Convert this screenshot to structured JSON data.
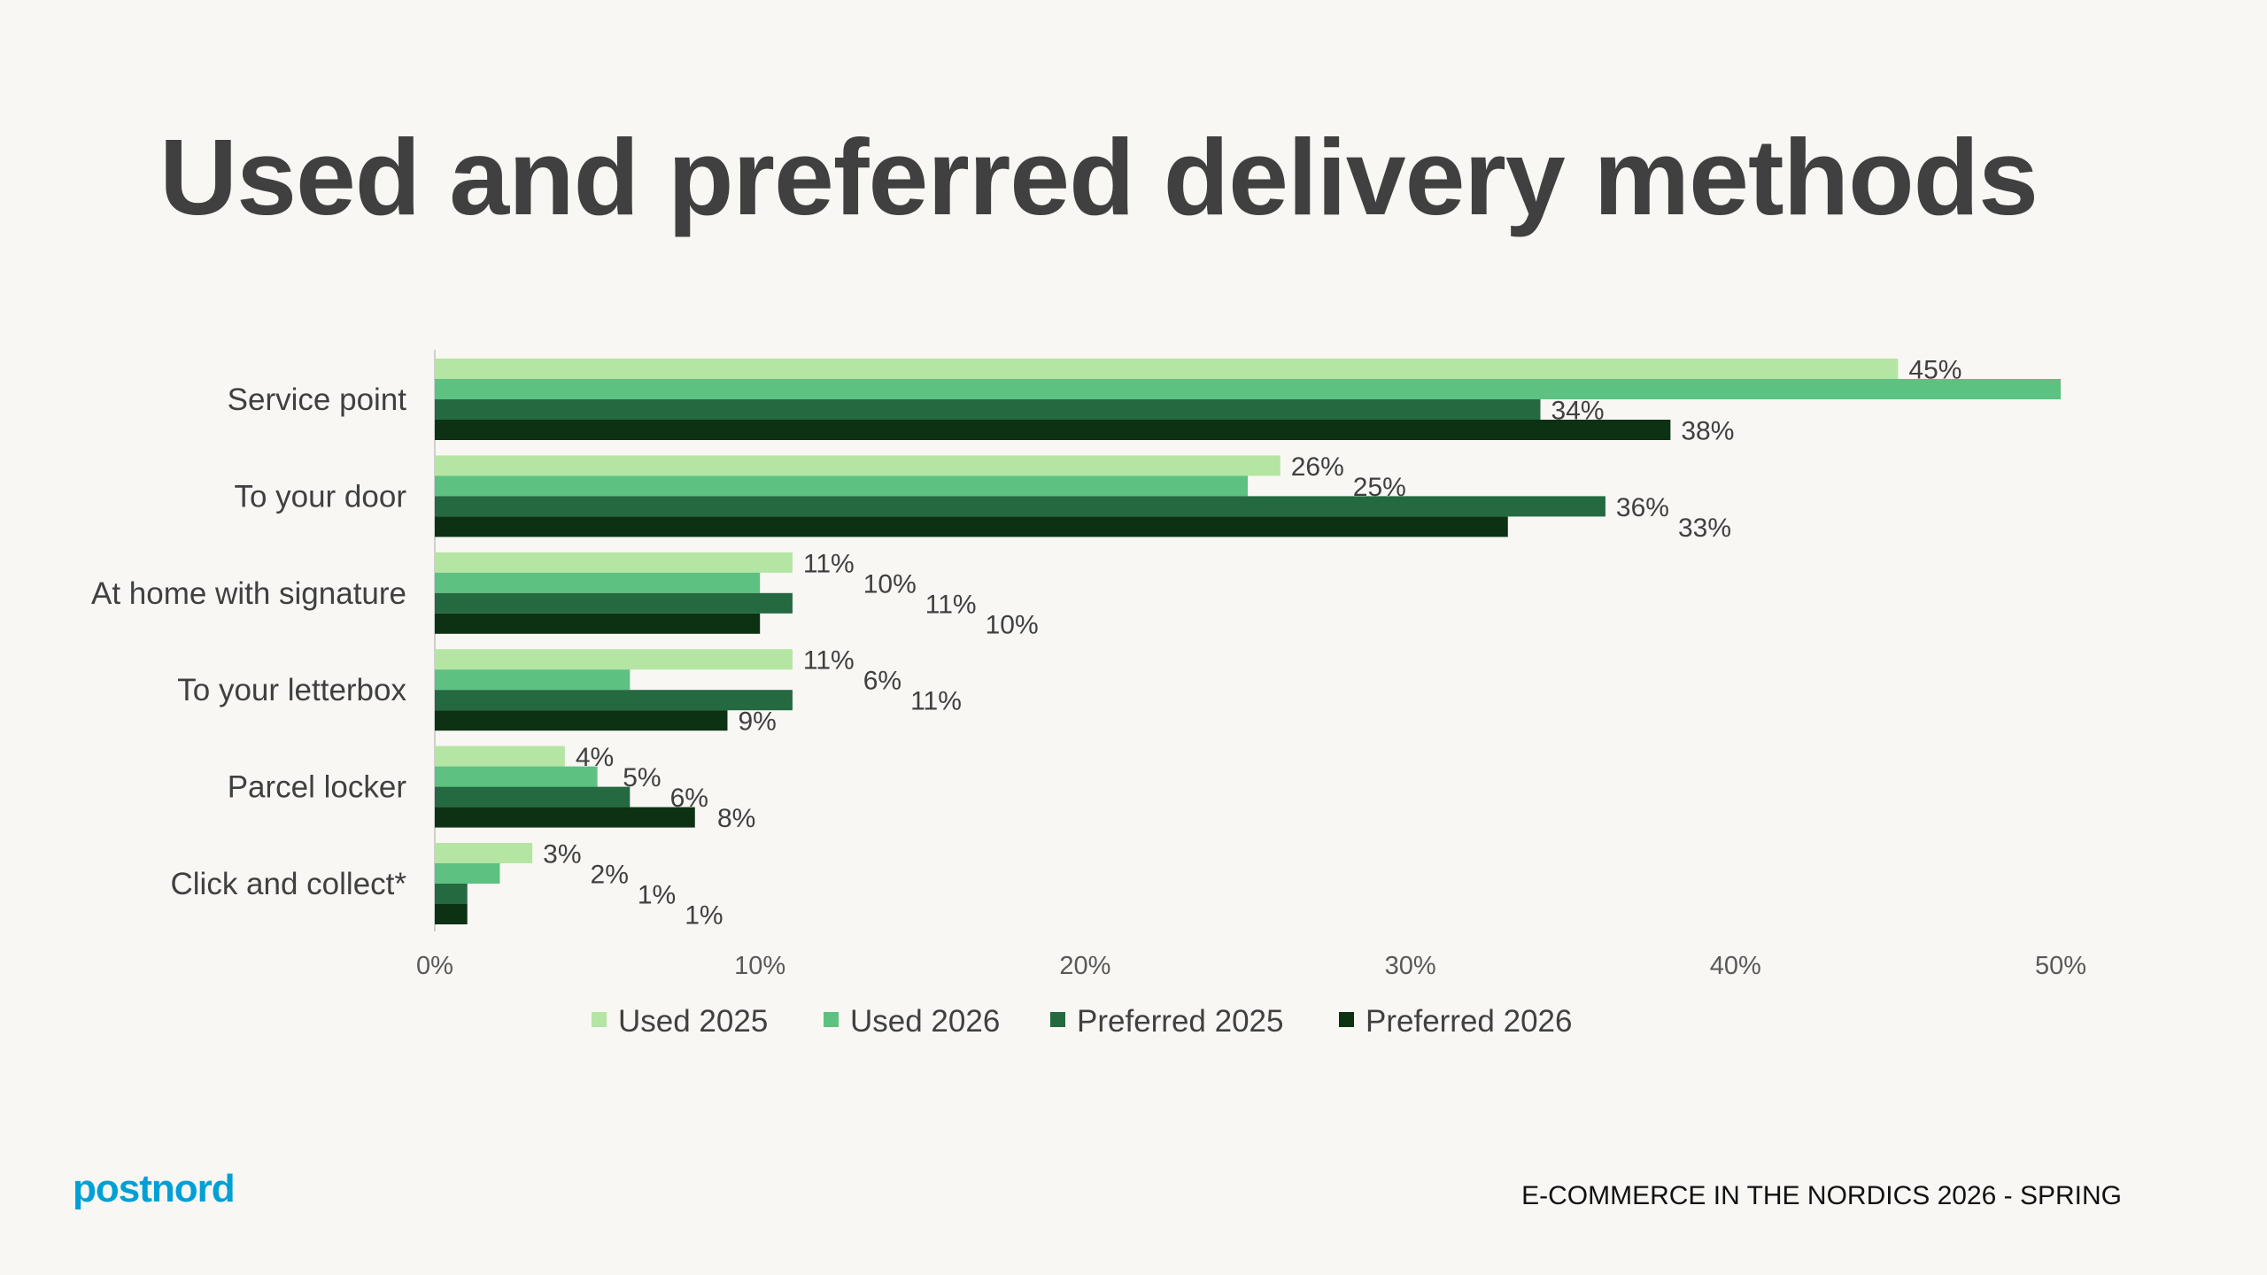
{
  "title": "Used and preferred delivery methods",
  "footer": "E-COMMERCE IN THE NORDICS 2026 - SPRING",
  "logo_text": "postnord",
  "chart_data": {
    "type": "bar",
    "orientation": "horizontal",
    "categories": [
      "Service point",
      "To your door",
      "At home with signature",
      "To your letterbox",
      "Parcel locker",
      "Click and collect*"
    ],
    "series": [
      {
        "name": "Used 2025",
        "color": "#b4e5a2",
        "values": [
          45,
          26,
          11,
          11,
          4,
          3
        ],
        "labels": [
          "45%",
          "26%",
          "11%",
          "11%",
          "4%",
          "3%"
        ]
      },
      {
        "name": "Used 2026",
        "color": "#5dc181",
        "values": [
          50,
          25,
          10,
          6,
          5,
          2
        ],
        "labels": [
          null,
          "25%",
          "10%",
          "6%",
          "5%",
          "2%"
        ]
      },
      {
        "name": "Preferred 2025",
        "color": "#246940",
        "values": [
          34,
          36,
          11,
          11,
          6,
          1
        ],
        "labels": [
          "34%",
          "36%",
          "11%",
          "11%",
          "6%",
          "1%"
        ]
      },
      {
        "name": "Preferred 2026",
        "color": "#0c3213",
        "values": [
          38,
          33,
          10,
          9,
          8,
          1
        ],
        "labels": [
          "38%",
          "33%",
          "10%",
          "9%",
          "8%",
          "1%"
        ]
      }
    ],
    "xticks": [
      "0%",
      "10%",
      "20%",
      "30%",
      "40%",
      "50%"
    ],
    "xlim": [
      0,
      50
    ],
    "grid": false,
    "legend": "bottom"
  }
}
